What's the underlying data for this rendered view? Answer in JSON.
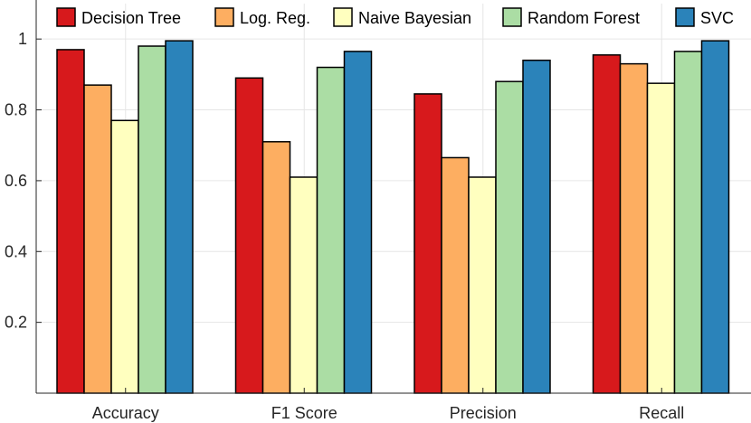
{
  "chart_data": {
    "type": "bar",
    "title": "",
    "xlabel": "",
    "ylabel": "",
    "ylim": [
      0,
      1.1
    ],
    "yticks": [
      0.2,
      0.4,
      0.6,
      0.8,
      1
    ],
    "ytick_labels": [
      "0.2",
      "0.4",
      "0.6",
      "0.8",
      "1"
    ],
    "grid": true,
    "legend_position": "top",
    "categories": [
      "Accuracy",
      "F1 Score",
      "Precision",
      "Recall"
    ],
    "series": [
      {
        "name": "Decision Tree",
        "color": "#d7191c",
        "values": [
          0.97,
          0.89,
          0.845,
          0.955
        ]
      },
      {
        "name": "Log. Reg.",
        "color": "#fdae61",
        "values": [
          0.87,
          0.71,
          0.665,
          0.93
        ]
      },
      {
        "name": "Naive Bayesian",
        "color": "#ffffbf",
        "values": [
          0.77,
          0.61,
          0.61,
          0.875
        ]
      },
      {
        "name": "Random Forest",
        "color": "#abdda4",
        "values": [
          0.98,
          0.92,
          0.88,
          0.965
        ]
      },
      {
        "name": "SVC",
        "color": "#2b83ba",
        "values": [
          0.995,
          0.965,
          0.94,
          0.995
        ]
      }
    ]
  }
}
